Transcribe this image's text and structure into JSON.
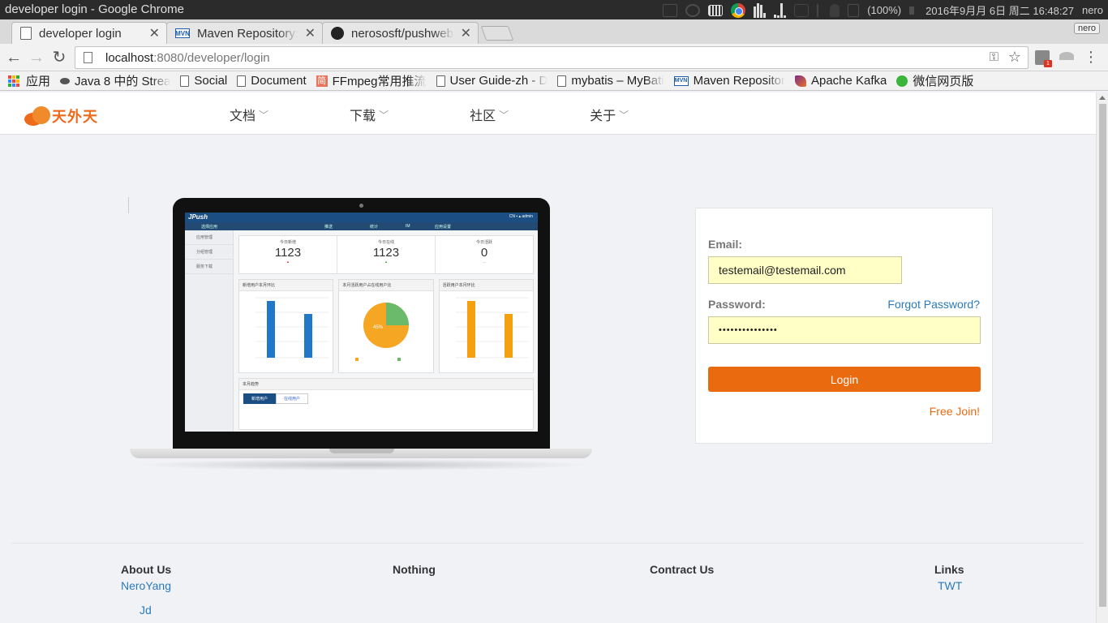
{
  "os": {
    "window_title": "developer login - Google Chrome",
    "battery": "(100%)",
    "datetime": "2016年9月月 6日 周二 16:48:27",
    "user": "nero"
  },
  "browser": {
    "tabs": [
      {
        "title": "developer login",
        "favicon": "page-icon",
        "active": true
      },
      {
        "title": "Maven Repository: c",
        "favicon": "mvn-icon",
        "active": false
      },
      {
        "title": "nerososft/pushweb:",
        "favicon": "github-icon",
        "active": false
      }
    ],
    "profile_label": "nero",
    "url_host": "localhost",
    "url_path": ":8080/developer/login",
    "bookmarks": [
      {
        "label": "应用",
        "icon": "apps-icon"
      },
      {
        "label": "Java 8 中的 Strea",
        "icon": "java-icon"
      },
      {
        "label": "Social",
        "icon": "page-icon"
      },
      {
        "label": "Document",
        "icon": "page-icon"
      },
      {
        "label": "FFmpeg常用推流",
        "icon": "ffmpeg-icon"
      },
      {
        "label": "User Guide-zh - D",
        "icon": "page-icon"
      },
      {
        "label": "mybatis – MyBati",
        "icon": "page-icon"
      },
      {
        "label": "Maven Repositor",
        "icon": "mvn-icon"
      },
      {
        "label": "Apache Kafka",
        "icon": "kafka-icon"
      },
      {
        "label": "微信网页版",
        "icon": "wechat-icon"
      }
    ]
  },
  "site": {
    "logo_text": "天外天",
    "nav": [
      "文档",
      "下载",
      "社区",
      "关于"
    ]
  },
  "screen_mock": {
    "brand": "JPush",
    "side": [
      "应用管理",
      "分组管理",
      "服务下载"
    ],
    "kpis": [
      {
        "label": "今日新增",
        "value": "1123"
      },
      {
        "label": "今日在线",
        "value": "1123"
      },
      {
        "label": "今日活跃",
        "value": "0"
      }
    ],
    "panel_titles": [
      "新增用户本月环比",
      "本月活跃用户占在线用户比",
      "活跃用户本月环比"
    ],
    "pie_label": "45%",
    "trend_title": "本月趋势",
    "trend_tabs": [
      "新增用户",
      "在线用户"
    ]
  },
  "login": {
    "email_label": "Email:",
    "email_value": "testemail@testemail.com",
    "password_label": "Password:",
    "password_value": "•••••••••••••••",
    "forgot_label": "Forgot Password?",
    "login_button": "Login",
    "join_label": "Free Join!"
  },
  "footer": {
    "about_title": "About Us",
    "about_links": [
      "NeroYang",
      "Jd"
    ],
    "nothing_title": "Nothing",
    "contract_title": "Contract Us",
    "links_title": "Links",
    "links": [
      "TWT"
    ]
  },
  "colors": {
    "accent": "#ea6a10",
    "link": "#2a7ab9",
    "input_bg": "#ffffc6",
    "page_bg": "#f1f2f6"
  }
}
